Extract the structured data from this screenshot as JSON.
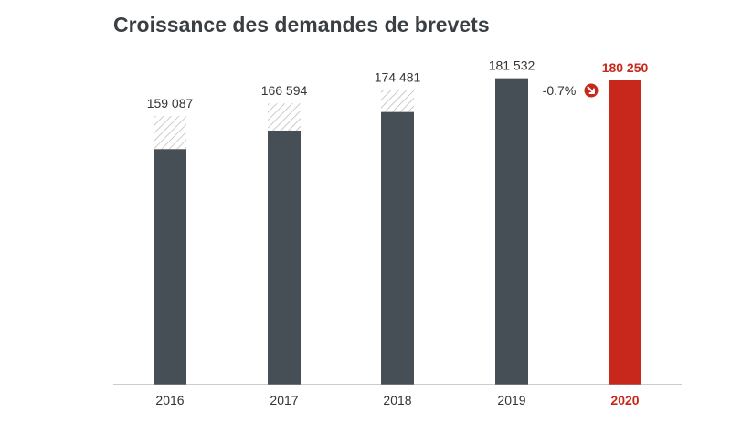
{
  "chart_data": {
    "type": "bar",
    "title": "Croissance des demandes de brevets",
    "categories": [
      "2016",
      "2017",
      "2018",
      "2019",
      "2020"
    ],
    "values": [
      159087,
      166594,
      174481,
      181532,
      180250
    ],
    "value_labels": [
      "159 087",
      "166 594",
      "174 481",
      "181 532",
      "180 250"
    ],
    "bar_visible_values": [
      139500,
      150500,
      161500,
      181532,
      180250
    ],
    "highlight_index": 4,
    "change_label": "-0.7%",
    "change_icon": "down-right-arrow-icon",
    "ylim": [
      0,
      190000
    ],
    "grid": false,
    "colors": {
      "bar": "#464f55",
      "highlight": "#c8281b",
      "hatch": "#b5b5b5",
      "baseline": "#999999"
    }
  }
}
